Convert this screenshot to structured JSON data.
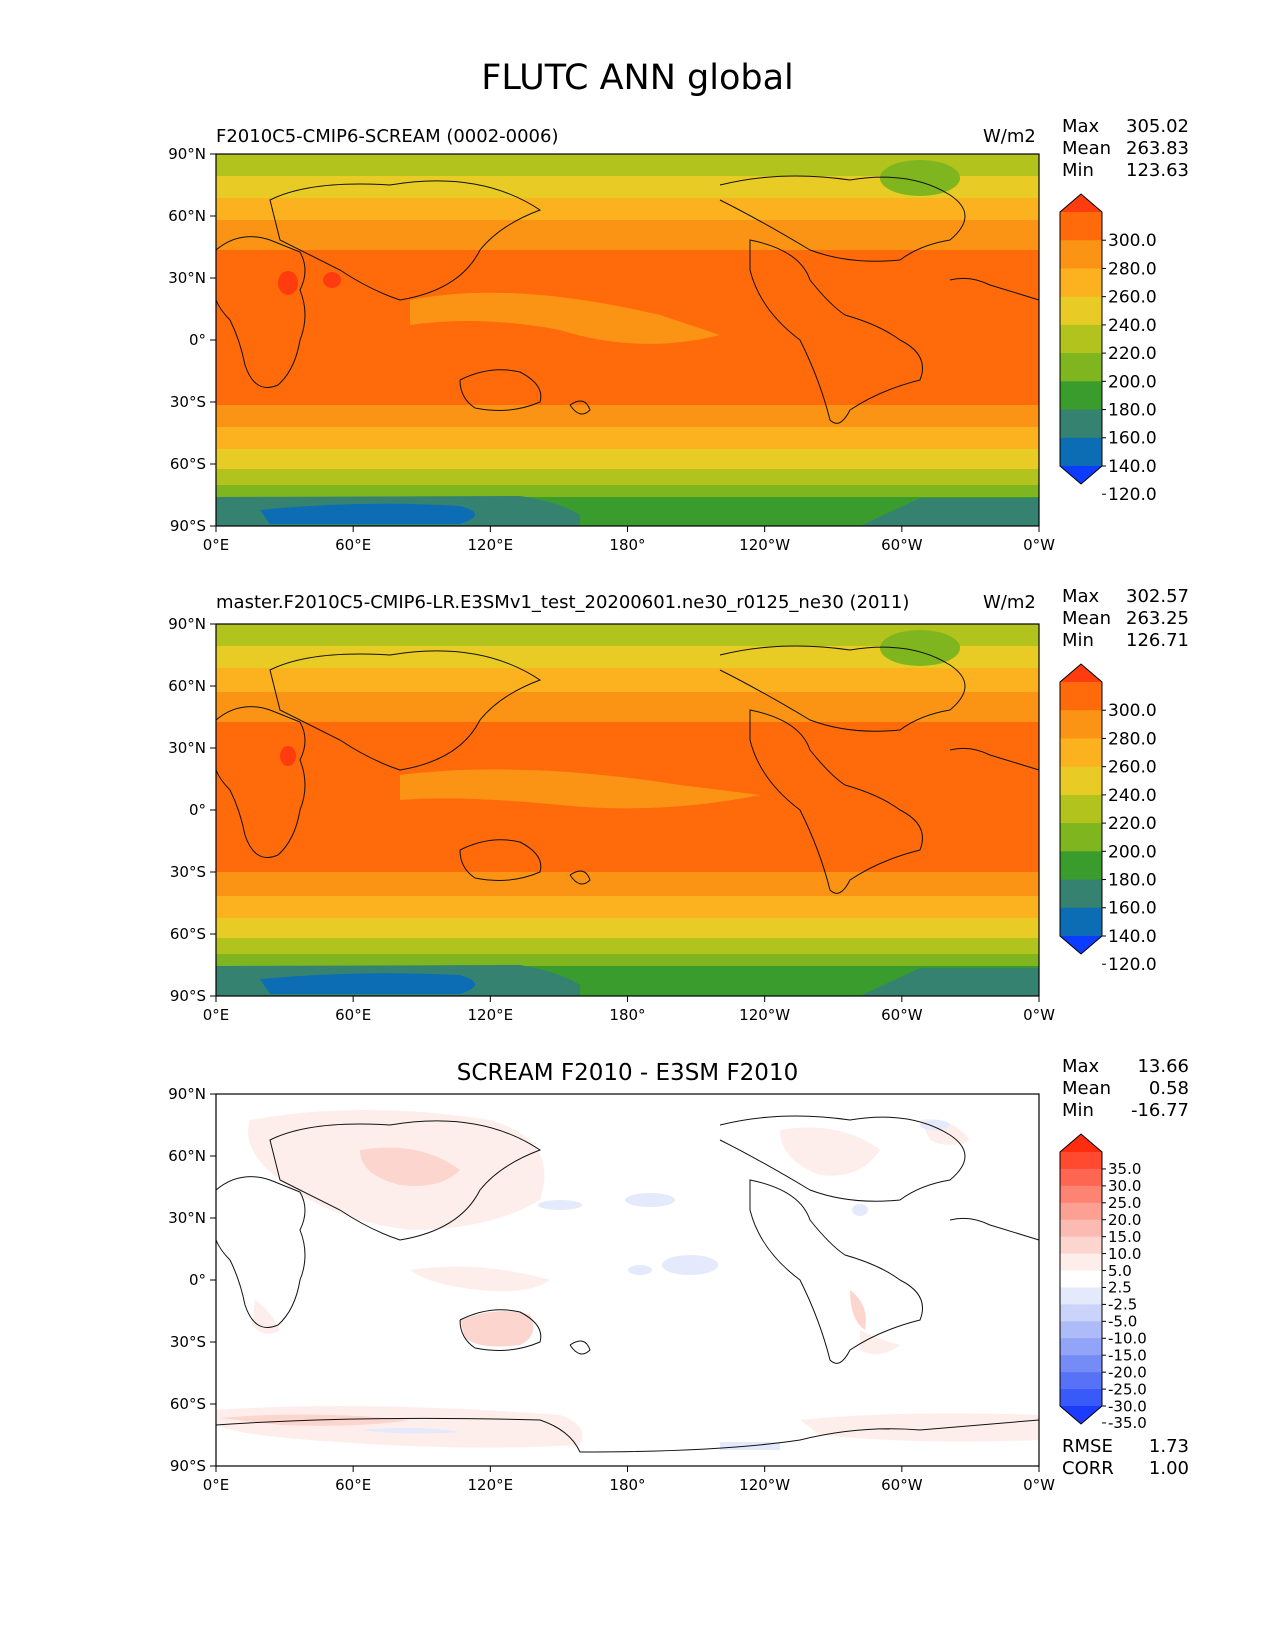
{
  "main_title": "FLUTC ANN global",
  "lat_ticks": [
    "90°N",
    "60°N",
    "30°N",
    "0°",
    "30°S",
    "60°S",
    "90°S"
  ],
  "lon_ticks": [
    "0°E",
    "60°E",
    "120°E",
    "180°",
    "120°W",
    "60°W",
    "0°W"
  ],
  "panels": [
    {
      "title": "F2010C5-CMIP6-SCREAM (0002-0006)",
      "units": "W/m2",
      "stats": {
        "max_label": "Max",
        "max": "305.02",
        "mean_label": "Mean",
        "mean": "263.83",
        "min_label": "Min",
        "min": "123.63"
      },
      "colorbar": {
        "labels": [
          "300.0",
          "280.0",
          "260.0",
          "240.0",
          "220.0",
          "200.0",
          "180.0",
          "160.0",
          "140.0",
          "120.0"
        ],
        "colors": [
          "#ff3b10",
          "#ff6a0a",
          "#fb9414",
          "#fbb21e",
          "#e8cc25",
          "#b3c31d",
          "#7fb51e",
          "#3a9c2c",
          "#358271",
          "#0c6cb4",
          "#0b3cff"
        ]
      }
    },
    {
      "title": "master.F2010C5-CMIP6-LR.E3SMv1_test_20200601.ne30_r0125_ne30 (2011)",
      "units": "W/m2",
      "stats": {
        "max_label": "Max",
        "max": "302.57",
        "mean_label": "Mean",
        "mean": "263.25",
        "min_label": "Min",
        "min": "126.71"
      },
      "colorbar": {
        "labels": [
          "300.0",
          "280.0",
          "260.0",
          "240.0",
          "220.0",
          "200.0",
          "180.0",
          "160.0",
          "140.0",
          "120.0"
        ],
        "colors": [
          "#ff3b10",
          "#ff6a0a",
          "#fb9414",
          "#fbb21e",
          "#e8cc25",
          "#b3c31d",
          "#7fb51e",
          "#3a9c2c",
          "#358271",
          "#0c6cb4",
          "#0b3cff"
        ]
      }
    },
    {
      "title": "SCREAM F2010 - E3SM F2010",
      "units": "",
      "stats": {
        "max_label": "Max",
        "max": "13.66",
        "mean_label": "Mean",
        "mean": "0.58",
        "min_label": "Min",
        "min": "-16.77"
      },
      "colorbar": {
        "labels": [
          "35.0",
          "30.0",
          "25.0",
          "20.0",
          "15.0",
          "10.0",
          "5.0",
          "2.5",
          "-2.5",
          "-5.0",
          "-10.0",
          "-15.0",
          "-20.0",
          "-25.0",
          "-30.0",
          "-35.0"
        ],
        "colors": [
          "#ff2c10",
          "#ff4a30",
          "#fe6652",
          "#fd8472",
          "#fca093",
          "#fbbbb2",
          "#fcd5cf",
          "#feeeeb",
          "#ffffff",
          "#e4e9fc",
          "#cad3fa",
          "#adbcf8",
          "#91a4f7",
          "#758cf6",
          "#5872f7",
          "#3a59f9",
          "#1b3cff"
        ]
      },
      "metrics": {
        "rmse_label": "RMSE",
        "rmse": "1.73",
        "corr_label": "CORR",
        "corr": "1.00"
      }
    }
  ]
}
